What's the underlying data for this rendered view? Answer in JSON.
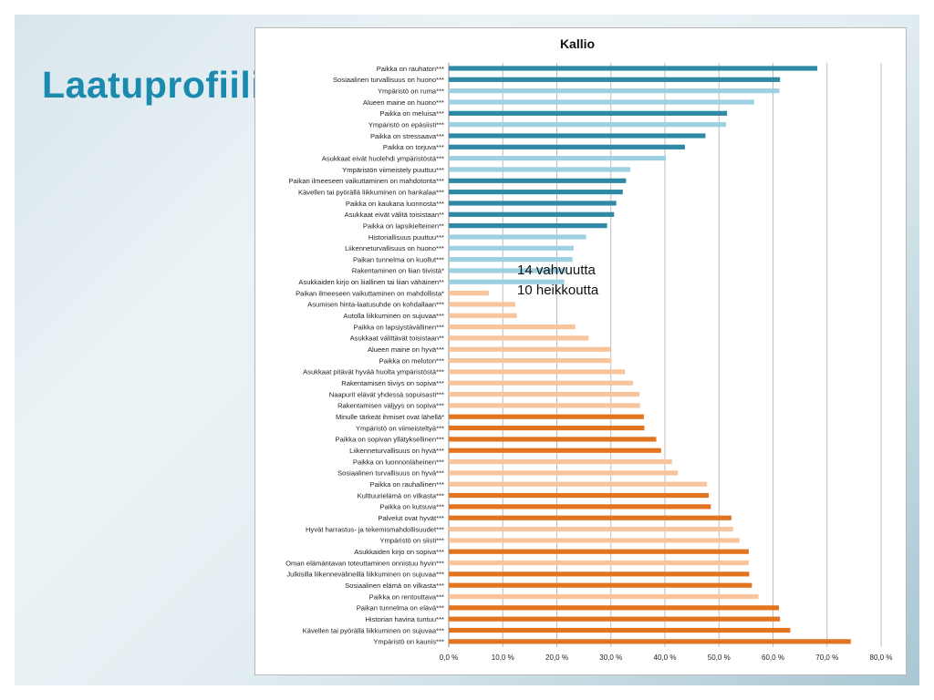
{
  "slide": {
    "title": "Laatuprofiili",
    "note_lines": [
      "14 vahvuutta",
      "10 heikkoutta"
    ]
  },
  "colors": {
    "dark_blue": "#2f88a4",
    "light_blue": "#9dd0e1",
    "light_orange": "#f8c49b",
    "dark_orange": "#e2731f",
    "grid": "#bfbfbf"
  },
  "chart_data": {
    "type": "bar",
    "orientation": "horizontal",
    "title": "Kallio",
    "xlim": [
      0,
      80
    ],
    "ticks": [
      0,
      10,
      20,
      30,
      40,
      50,
      60,
      70,
      80
    ],
    "tick_labels": [
      "0,0 %",
      "10,0 %",
      "20,0 %",
      "30,0 %",
      "40,0 %",
      "50,0 %",
      "60,0 %",
      "70,0 %",
      "80,0 %"
    ],
    "grid": true,
    "categories": [
      "Paikka on rauhaton***",
      "Sosiaalinen turvallisuus on huono***",
      "Ympäristö on ruma***",
      "Alueen maine on huono***",
      "Paikka on meluisa***",
      "Ympäristö on epäsiisti***",
      "Paikka on stressaava***",
      "Paikka on torjuva***",
      "Asukkaat eivät huolehdi ympäristöstä***",
      "Ympäristön viimeistely puuttuu***",
      "Paikan ilmeeseen vaikuttaminen on mahdotonta***",
      "Kävellen tai pyörällä liikkuminen on hankalaa***",
      "Paikka on kaukana luonnosta***",
      "Asukkaat eivät välitä toisistaan**",
      "Paikka on lapsikielteinen**",
      "Historiallisuus puuttuu***",
      "Liikenneturvallisuus on huono***",
      "Paikan tunnelma on kuollut***",
      "Rakentaminen on liian tiivistä*",
      "Asukkaiden kirjo on liiallinen tai liian vähäinen**",
      "Paikan ilmeeseen vaikuttaminen on mahdollista*",
      "Asumisen hinta-laatusuhde on kohdallaan***",
      "Autolla liikkuminen on sujuvaa***",
      "Paikka on lapsiystävällinen***",
      "Asukkaat välittävät toisistaan**",
      "Alueen maine on hyvä***",
      "Paikka on meluton***",
      "Asukkaat pitävät hyvää huolta ympäristöstä***",
      "Rakentamisen tiiviys on sopiva***",
      "Naapurit elävät yhdessä sopuisasti***",
      "Rakentamisen väljyys on sopiva***",
      "Minulle tärkeät ihmiset ovat lähellä*",
      "Ympäristö on viimeisteltyä***",
      "Paikka on sopivan yllätyksellinen***",
      "Liikenneturvallisuus on hyvä***",
      "Paikka on luonnonläheinen***",
      "Sosiaalinen turvallisuus on hyvä***",
      "Paikka on rauhallinen***",
      "Kulttuurielämä on vilkasta***",
      "Paikka on kutsuva***",
      "Palvelut ovat hyvät***",
      "Hyvät harrastus- ja tekemismahdollisuudet***",
      "Ympäristö on siisti***",
      "Asukkaiden kirjo on sopiva***",
      "Oman elämäntavan toteuttaminen onnistuu hyvin***",
      "Julkisilla liikennevälineillä liikkuminen on sujuvaa***",
      "Sosiaalinen elämä on vilkasta***",
      "Paikka on rentouttava***",
      "Paikan tunnelma on elävä***",
      "Historian havina tuntuu***",
      "Kävellen tai pyörällä liikkuminen on sujuvaa***",
      "Ympäristö on kaunis***"
    ],
    "values": [
      68.2,
      61.3,
      61.2,
      56.5,
      51.5,
      51.3,
      47.5,
      43.7,
      40.2,
      33.6,
      32.8,
      32.2,
      31.0,
      30.6,
      29.3,
      25.4,
      23.1,
      22.9,
      21.6,
      21.4,
      7.4,
      12.3,
      12.6,
      23.4,
      25.9,
      30.0,
      30.1,
      32.6,
      34.1,
      35.3,
      35.4,
      36.1,
      36.2,
      38.4,
      39.3,
      41.3,
      42.4,
      47.8,
      48.1,
      48.5,
      52.3,
      52.6,
      53.8,
      55.5,
      55.5,
      55.6,
      56.1,
      57.3,
      61.1,
      61.3,
      63.2,
      74.4
    ],
    "color_keys": [
      "dark_blue",
      "dark_blue",
      "light_blue",
      "light_blue",
      "dark_blue",
      "light_blue",
      "dark_blue",
      "dark_blue",
      "light_blue",
      "light_blue",
      "dark_blue",
      "dark_blue",
      "dark_blue",
      "dark_blue",
      "dark_blue",
      "light_blue",
      "light_blue",
      "light_blue",
      "light_blue",
      "light_blue",
      "light_orange",
      "light_orange",
      "light_orange",
      "light_orange",
      "light_orange",
      "light_orange",
      "light_orange",
      "light_orange",
      "light_orange",
      "light_orange",
      "light_orange",
      "dark_orange",
      "dark_orange",
      "dark_orange",
      "dark_orange",
      "light_orange",
      "light_orange",
      "light_orange",
      "dark_orange",
      "dark_orange",
      "dark_orange",
      "light_orange",
      "light_orange",
      "dark_orange",
      "light_orange",
      "dark_orange",
      "dark_orange",
      "light_orange",
      "dark_orange",
      "dark_orange",
      "dark_orange",
      "dark_orange"
    ]
  }
}
